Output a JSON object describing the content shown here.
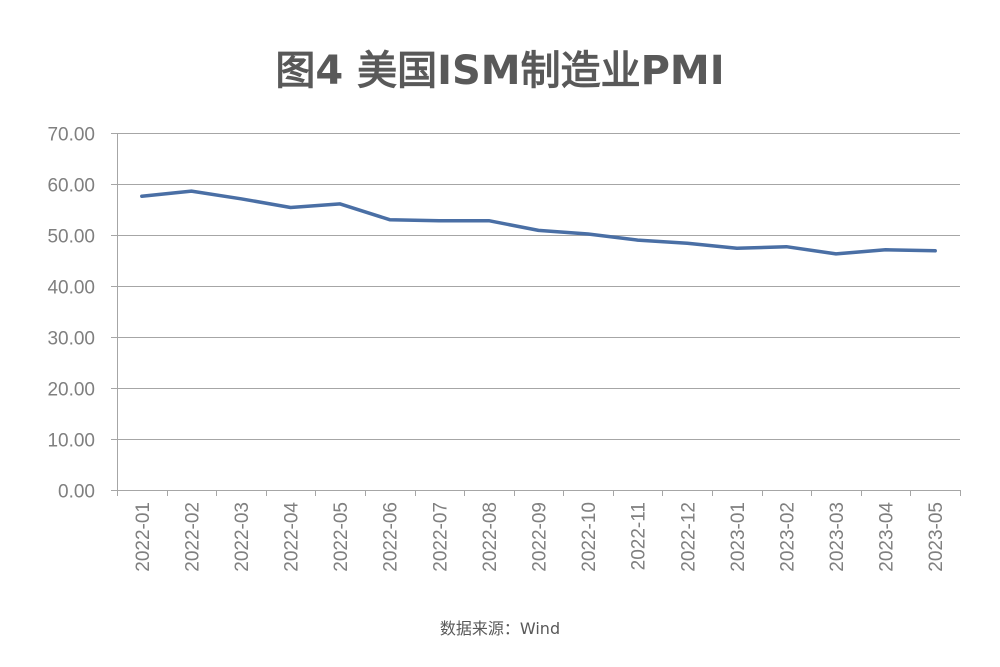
{
  "title": "图4 美国ISM制造业PMI",
  "source": "数据来源：Wind",
  "chart_data": {
    "type": "line",
    "title": "图4 美国ISM制造业PMI",
    "xlabel": "",
    "ylabel": "",
    "ylim": [
      0,
      70
    ],
    "yticks": [
      "0.00",
      "10.00",
      "20.00",
      "30.00",
      "40.00",
      "50.00",
      "60.00",
      "70.00"
    ],
    "grid": true,
    "legend": "none",
    "categories": [
      "2022-01",
      "2022-02",
      "2022-03",
      "2022-04",
      "2022-05",
      "2022-06",
      "2022-07",
      "2022-08",
      "2022-09",
      "2022-10",
      "2022-11",
      "2022-12",
      "2023-01",
      "2023-02",
      "2023-03",
      "2023-04",
      "2023-05"
    ],
    "series": [
      {
        "name": "美国ISM制造业PMI",
        "color": "#4a6fa5",
        "values": [
          57.6,
          58.6,
          57.1,
          55.4,
          56.1,
          53.0,
          52.8,
          52.8,
          50.9,
          50.2,
          49.0,
          48.4,
          47.4,
          47.7,
          46.3,
          47.1,
          46.9
        ]
      }
    ],
    "annotations": [
      "数据来源：Wind"
    ]
  },
  "colors": {
    "line": "#4a6fa5",
    "grid": "#a6a6a6",
    "axis": "#a6a6a6",
    "text": "#7f7f7f",
    "title": "#595959"
  }
}
